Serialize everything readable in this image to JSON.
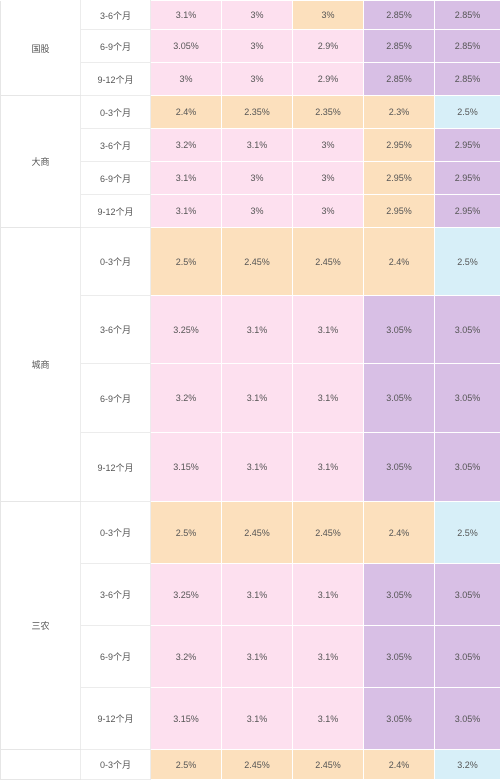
{
  "colors": {
    "pink": "#fde0ef",
    "orange": "#fce0bd",
    "purple": "#d8bfe5",
    "blue": "#d7eff8"
  },
  "groups": [
    {
      "name": "国股",
      "rows": [
        {
          "term": "3-6个月",
          "cells": [
            {
              "v": "3.1%",
              "c": "pink"
            },
            {
              "v": "3%",
              "c": "pink"
            },
            {
              "v": "3%",
              "c": "orange"
            },
            {
              "v": "2.85%",
              "c": "purple"
            },
            {
              "v": "2.85%",
              "c": "purple"
            }
          ]
        },
        {
          "term": "6-9个月",
          "cells": [
            {
              "v": "3.05%",
              "c": "pink"
            },
            {
              "v": "3%",
              "c": "pink"
            },
            {
              "v": "2.9%",
              "c": "pink"
            },
            {
              "v": "2.85%",
              "c": "purple"
            },
            {
              "v": "2.85%",
              "c": "purple"
            }
          ]
        },
        {
          "term": "9-12个月",
          "cells": [
            {
              "v": "3%",
              "c": "pink"
            },
            {
              "v": "3%",
              "c": "pink"
            },
            {
              "v": "2.9%",
              "c": "pink"
            },
            {
              "v": "2.85%",
              "c": "purple"
            },
            {
              "v": "2.85%",
              "c": "purple"
            }
          ]
        }
      ]
    },
    {
      "name": "大商",
      "rows": [
        {
          "term": "0-3个月",
          "cells": [
            {
              "v": "2.4%",
              "c": "orange"
            },
            {
              "v": "2.35%",
              "c": "orange"
            },
            {
              "v": "2.35%",
              "c": "orange"
            },
            {
              "v": "2.3%",
              "c": "orange"
            },
            {
              "v": "2.5%",
              "c": "blue"
            }
          ]
        },
        {
          "term": "3-6个月",
          "cells": [
            {
              "v": "3.2%",
              "c": "pink"
            },
            {
              "v": "3.1%",
              "c": "pink"
            },
            {
              "v": "3%",
              "c": "pink"
            },
            {
              "v": "2.95%",
              "c": "orange"
            },
            {
              "v": "2.95%",
              "c": "purple"
            }
          ]
        },
        {
          "term": "6-9个月",
          "cells": [
            {
              "v": "3.1%",
              "c": "pink"
            },
            {
              "v": "3%",
              "c": "pink"
            },
            {
              "v": "3%",
              "c": "pink"
            },
            {
              "v": "2.95%",
              "c": "orange"
            },
            {
              "v": "2.95%",
              "c": "purple"
            }
          ]
        },
        {
          "term": "9-12个月",
          "cells": [
            {
              "v": "3.1%",
              "c": "pink"
            },
            {
              "v": "3%",
              "c": "pink"
            },
            {
              "v": "3%",
              "c": "pink"
            },
            {
              "v": "2.95%",
              "c": "orange"
            },
            {
              "v": "2.95%",
              "c": "purple"
            }
          ]
        }
      ]
    },
    {
      "name": "城商",
      "rows": [
        {
          "term": "0-3个月",
          "cells": [
            {
              "v": "2.5%",
              "c": "orange"
            },
            {
              "v": "2.45%",
              "c": "orange"
            },
            {
              "v": "2.45%",
              "c": "orange"
            },
            {
              "v": "2.4%",
              "c": "orange"
            },
            {
              "v": "2.5%",
              "c": "blue"
            }
          ]
        },
        {
          "term": "3-6个月",
          "cells": [
            {
              "v": "3.25%",
              "c": "pink"
            },
            {
              "v": "3.1%",
              "c": "pink"
            },
            {
              "v": "3.1%",
              "c": "pink"
            },
            {
              "v": "3.05%",
              "c": "purple"
            },
            {
              "v": "3.05%",
              "c": "purple"
            }
          ]
        },
        {
          "term": "6-9个月",
          "cells": [
            {
              "v": "3.2%",
              "c": "pink"
            },
            {
              "v": "3.1%",
              "c": "pink"
            },
            {
              "v": "3.1%",
              "c": "pink"
            },
            {
              "v": "3.05%",
              "c": "purple"
            },
            {
              "v": "3.05%",
              "c": "purple"
            }
          ]
        },
        {
          "term": "9-12个月",
          "cells": [
            {
              "v": "3.15%",
              "c": "pink"
            },
            {
              "v": "3.1%",
              "c": "pink"
            },
            {
              "v": "3.1%",
              "c": "pink"
            },
            {
              "v": "3.05%",
              "c": "purple"
            },
            {
              "v": "3.05%",
              "c": "purple"
            }
          ]
        }
      ]
    },
    {
      "name": "三农",
      "rows": [
        {
          "term": "0-3个月",
          "cells": [
            {
              "v": "2.5%",
              "c": "orange"
            },
            {
              "v": "2.45%",
              "c": "orange"
            },
            {
              "v": "2.45%",
              "c": "orange"
            },
            {
              "v": "2.4%",
              "c": "orange"
            },
            {
              "v": "2.5%",
              "c": "blue"
            }
          ]
        },
        {
          "term": "3-6个月",
          "cells": [
            {
              "v": "3.25%",
              "c": "pink"
            },
            {
              "v": "3.1%",
              "c": "pink"
            },
            {
              "v": "3.1%",
              "c": "pink"
            },
            {
              "v": "3.05%",
              "c": "purple"
            },
            {
              "v": "3.05%",
              "c": "purple"
            }
          ]
        },
        {
          "term": "6-9个月",
          "cells": [
            {
              "v": "3.2%",
              "c": "pink"
            },
            {
              "v": "3.1%",
              "c": "pink"
            },
            {
              "v": "3.1%",
              "c": "pink"
            },
            {
              "v": "3.05%",
              "c": "purple"
            },
            {
              "v": "3.05%",
              "c": "purple"
            }
          ]
        },
        {
          "term": "9-12个月",
          "cells": [
            {
              "v": "3.15%",
              "c": "pink"
            },
            {
              "v": "3.1%",
              "c": "pink"
            },
            {
              "v": "3.1%",
              "c": "pink"
            },
            {
              "v": "3.05%",
              "c": "purple"
            },
            {
              "v": "3.05%",
              "c": "purple"
            }
          ]
        }
      ]
    },
    {
      "name": "",
      "rows": [
        {
          "term": "0-3个月",
          "cells": [
            {
              "v": "2.5%",
              "c": "orange"
            },
            {
              "v": "2.45%",
              "c": "orange"
            },
            {
              "v": "2.45%",
              "c": "orange"
            },
            {
              "v": "2.4%",
              "c": "orange"
            },
            {
              "v": "3.2%",
              "c": "blue"
            }
          ]
        }
      ]
    }
  ]
}
